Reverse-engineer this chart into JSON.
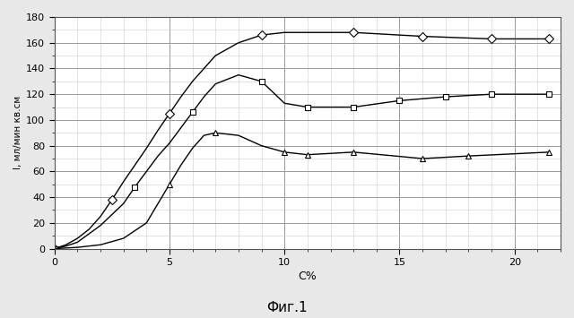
{
  "title": "Фиг.1",
  "xlabel": "С%",
  "ylabel": "I, мл/мин кв.см",
  "xlim": [
    0,
    22
  ],
  "ylim": [
    0,
    180
  ],
  "xticks_major": [
    0,
    5,
    10,
    15,
    20
  ],
  "yticks_major": [
    0,
    20,
    40,
    60,
    80,
    100,
    120,
    140,
    160,
    180
  ],
  "series": [
    {
      "x": [
        0,
        0.5,
        1.0,
        1.5,
        2.0,
        2.5,
        3.0,
        3.5,
        4.0,
        4.5,
        5.0,
        5.5,
        6.0,
        7.0,
        8.0,
        9.0,
        10.0,
        13.0,
        16.0,
        19.0,
        21.5
      ],
      "y": [
        0,
        3,
        8,
        15,
        25,
        38,
        52,
        65,
        78,
        92,
        105,
        118,
        130,
        150,
        160,
        166,
        168,
        168,
        165,
        163,
        163
      ],
      "marker": "D",
      "markersize": 5,
      "markevery": [
        0,
        5,
        10,
        15,
        17,
        18,
        19,
        20
      ],
      "color": "#000000",
      "linewidth": 1.0
    },
    {
      "x": [
        0,
        0.5,
        1.0,
        2.0,
        3.0,
        3.5,
        4.0,
        4.5,
        5.0,
        5.5,
        6.0,
        6.5,
        7.0,
        8.0,
        9.0,
        10.0,
        11.0,
        13.0,
        15.0,
        17.0,
        19.0,
        21.5
      ],
      "y": [
        0,
        2,
        5,
        18,
        35,
        48,
        60,
        72,
        82,
        94,
        106,
        118,
        128,
        135,
        130,
        113,
        110,
        110,
        115,
        118,
        120,
        120
      ],
      "marker": "s",
      "markersize": 5,
      "markevery": [
        0,
        5,
        10,
        14,
        16,
        17,
        18,
        19,
        20,
        21
      ],
      "color": "#000000",
      "linewidth": 1.0
    },
    {
      "x": [
        0,
        1.0,
        2.0,
        3.0,
        4.0,
        4.5,
        5.0,
        5.5,
        6.0,
        6.5,
        7.0,
        8.0,
        9.0,
        10.0,
        11.0,
        13.0,
        16.0,
        18.0,
        21.5
      ],
      "y": [
        0,
        1,
        3,
        8,
        20,
        35,
        50,
        65,
        78,
        88,
        90,
        88,
        80,
        75,
        73,
        75,
        70,
        72,
        75
      ],
      "marker": "^",
      "markersize": 5,
      "markevery": [
        0,
        6,
        10,
        13,
        14,
        15,
        16,
        17,
        18
      ],
      "color": "#000000",
      "linewidth": 1.0
    }
  ],
  "background_color": "#ffffff",
  "grid_major_color": "#999999",
  "grid_minor_color": "#cccccc",
  "fig_background": "#e8e8e8"
}
